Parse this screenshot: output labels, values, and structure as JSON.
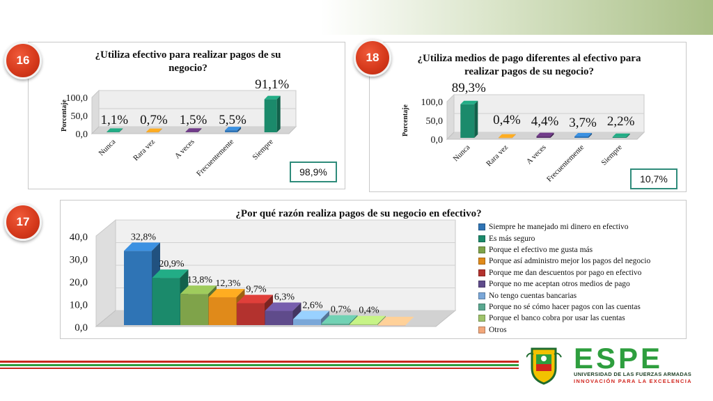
{
  "badges": {
    "b1": "16",
    "b2": "18",
    "b3": "17"
  },
  "chart_data": [
    {
      "type": "bar",
      "title": "¿Utiliza efectivo para realizar pagos de su negocio?",
      "ylabel": "Porcentaje",
      "categories": [
        "Nunca",
        "Rara vez",
        "A veces",
        "Frecuentemente",
        "Siempre"
      ],
      "values": [
        1.1,
        0.7,
        1.5,
        5.5,
        91.1
      ],
      "value_labels": [
        "1,1%",
        "0,7%",
        "1,5%",
        "5,5%",
        "91,1%"
      ],
      "ylim": [
        0,
        100
      ],
      "yticks": [
        "0,0",
        "50,0",
        "100,0"
      ],
      "colors": [
        "#1b8a6b",
        "#d98a1a",
        "#5a2f6e",
        "#2f74b5",
        "#1b8a6b"
      ],
      "box_label": "98,9%"
    },
    {
      "type": "bar",
      "title": "¿Utiliza medios de pago diferentes al efectivo para realizar pagos de su negocio?",
      "ylabel": "Porcentaje",
      "categories": [
        "Nunca",
        "Rara vez",
        "A veces",
        "Frecuentemente",
        "Siempre"
      ],
      "values": [
        89.3,
        0.4,
        4.4,
        3.7,
        2.2
      ],
      "value_labels": [
        "89,3%",
        "0,4%",
        "4,4%",
        "3,7%",
        "2,2%"
      ],
      "ylim": [
        0,
        100
      ],
      "yticks": [
        "0,0",
        "50,0",
        "100,0"
      ],
      "colors": [
        "#1b8a6b",
        "#d98a1a",
        "#5a2f6e",
        "#2f74b5",
        "#1b8a6b"
      ],
      "box_label": "10,7%"
    },
    {
      "type": "bar",
      "title": "¿Por qué razón realiza pagos de su negocio en efectivo?",
      "categories": [
        "Siempre he manejado mi dinero en efectivo",
        "Es más seguro",
        "Porque el efectivo me gusta más",
        "Porque así administro mejor los pagos del negocio",
        "Porque me dan descuentos por pago en efectivo",
        "Porque no me aceptan otros medios de pago",
        "No tengo cuentas bancarias",
        "Porque no sé cómo hacer pagos con las cuentas",
        "Porque el banco cobra por usar las cuentas",
        "Otros"
      ],
      "values": [
        32.8,
        20.9,
        13.8,
        12.3,
        9.7,
        6.3,
        2.6,
        0.7,
        0.4,
        0.0
      ],
      "value_labels": [
        "32,8%",
        "20,9%",
        "13,8%",
        "12,3%",
        "9,7%",
        "6,3%",
        "2,6%",
        "0,7%",
        "0,4%",
        ""
      ],
      "ylim": [
        0,
        40
      ],
      "yticks": [
        "0,0",
        "10,0",
        "20,0",
        "30,0",
        "40,0"
      ],
      "colors": [
        "#2f74b5",
        "#1b8a6b",
        "#7fa34a",
        "#e08a1a",
        "#b3322e",
        "#5f4b8b",
        "#7aa7d8",
        "#5aa890",
        "#9fc36b",
        "#f2a77a"
      ],
      "legend": "right"
    }
  ],
  "logo": {
    "name": "ESPE",
    "line1": "UNIVERSIDAD DE LAS FUERZAS ARMADAS",
    "line2": "INNOVACIÓN PARA LA EXCELENCIA",
    "colors": {
      "green": "#2e9e3e",
      "red": "#d1251e"
    }
  }
}
